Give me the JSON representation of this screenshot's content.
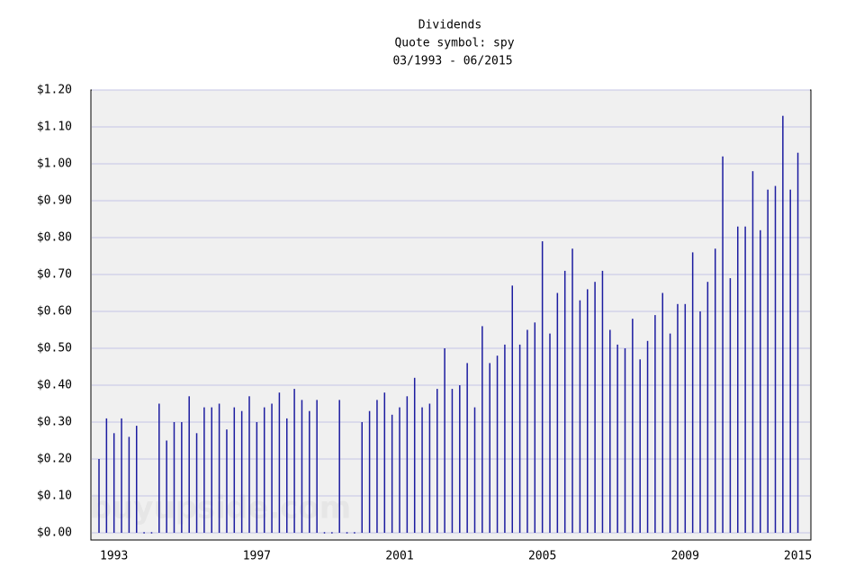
{
  "chart_data": {
    "type": "bar",
    "title": "Dividends",
    "subtitle": "Quote symbol: spy",
    "period": "03/1993 - 06/2015",
    "watermark": "buyupside.com",
    "color": "#1c1ca0",
    "grid": true,
    "categories": [
      null,
      null,
      "1993",
      null,
      null,
      null,
      null,
      null,
      null,
      null,
      null,
      null,
      null,
      null,
      null,
      null,
      null,
      null,
      null,
      null,
      null,
      "1997",
      null,
      null,
      null,
      null,
      null,
      null,
      null,
      null,
      null,
      null,
      null,
      null,
      null,
      null,
      null,
      null,
      null,
      null,
      "2001",
      null,
      null,
      null,
      null,
      null,
      null,
      null,
      null,
      null,
      null,
      null,
      null,
      null,
      null,
      null,
      null,
      null,
      null,
      "2005",
      null,
      null,
      null,
      null,
      null,
      null,
      null,
      null,
      null,
      null,
      null,
      null,
      null,
      null,
      null,
      null,
      null,
      null,
      "2009",
      null,
      null,
      null,
      null,
      null,
      null,
      null,
      null,
      null,
      null,
      null,
      null,
      null,
      null,
      "2015"
    ],
    "values": [
      0.2,
      0.31,
      0.27,
      0.31,
      0.26,
      0.29,
      0,
      0,
      0.35,
      0.25,
      0.3,
      0.3,
      0.37,
      0.27,
      0.34,
      0.34,
      0.35,
      0.28,
      0.34,
      0.33,
      0.37,
      0.3,
      0.34,
      0.35,
      0.38,
      0.31,
      0.39,
      0.36,
      0.33,
      0.36,
      0,
      0,
      0.36,
      0,
      0,
      0.3,
      0.33,
      0.36,
      0.38,
      0.32,
      0.34,
      0.37,
      0.42,
      0.34,
      0.35,
      0.39,
      0.5,
      0.39,
      0.4,
      0.46,
      0.34,
      0.56,
      0.46,
      0.48,
      0.51,
      0.67,
      0.51,
      0.55,
      0.57,
      0.79,
      0.54,
      0.65,
      0.71,
      0.77,
      0.63,
      0.66,
      0.68,
      0.71,
      0.55,
      0.51,
      0.5,
      0.58,
      0.47,
      0.52,
      0.59,
      0.65,
      0.54,
      0.62,
      0.62,
      0.76,
      0.6,
      0.68,
      0.77,
      1.02,
      0.69,
      0.83,
      0.83,
      0.98,
      0.82,
      0.93,
      0.94,
      1.13,
      0.93,
      1.03
    ],
    "ylim": [
      0,
      1.2
    ],
    "yticks": [
      {
        "value": 0,
        "label": "$0.00"
      },
      {
        "value": 0.1,
        "label": "$0.10"
      },
      {
        "value": 0.2,
        "label": "$0.20"
      },
      {
        "value": 0.3,
        "label": "$0.30"
      },
      {
        "value": 0.4,
        "label": "$0.40"
      },
      {
        "value": 0.5,
        "label": "$0.50"
      },
      {
        "value": 0.6,
        "label": "$0.60"
      },
      {
        "value": 0.7,
        "label": "$0.70"
      },
      {
        "value": 0.8,
        "label": "$0.80"
      },
      {
        "value": 0.9,
        "label": "$0.90"
      },
      {
        "value": 1.0,
        "label": "$1.00"
      },
      {
        "value": 1.1,
        "label": "$1.10"
      },
      {
        "value": 1.2,
        "label": "$1.20"
      }
    ]
  }
}
